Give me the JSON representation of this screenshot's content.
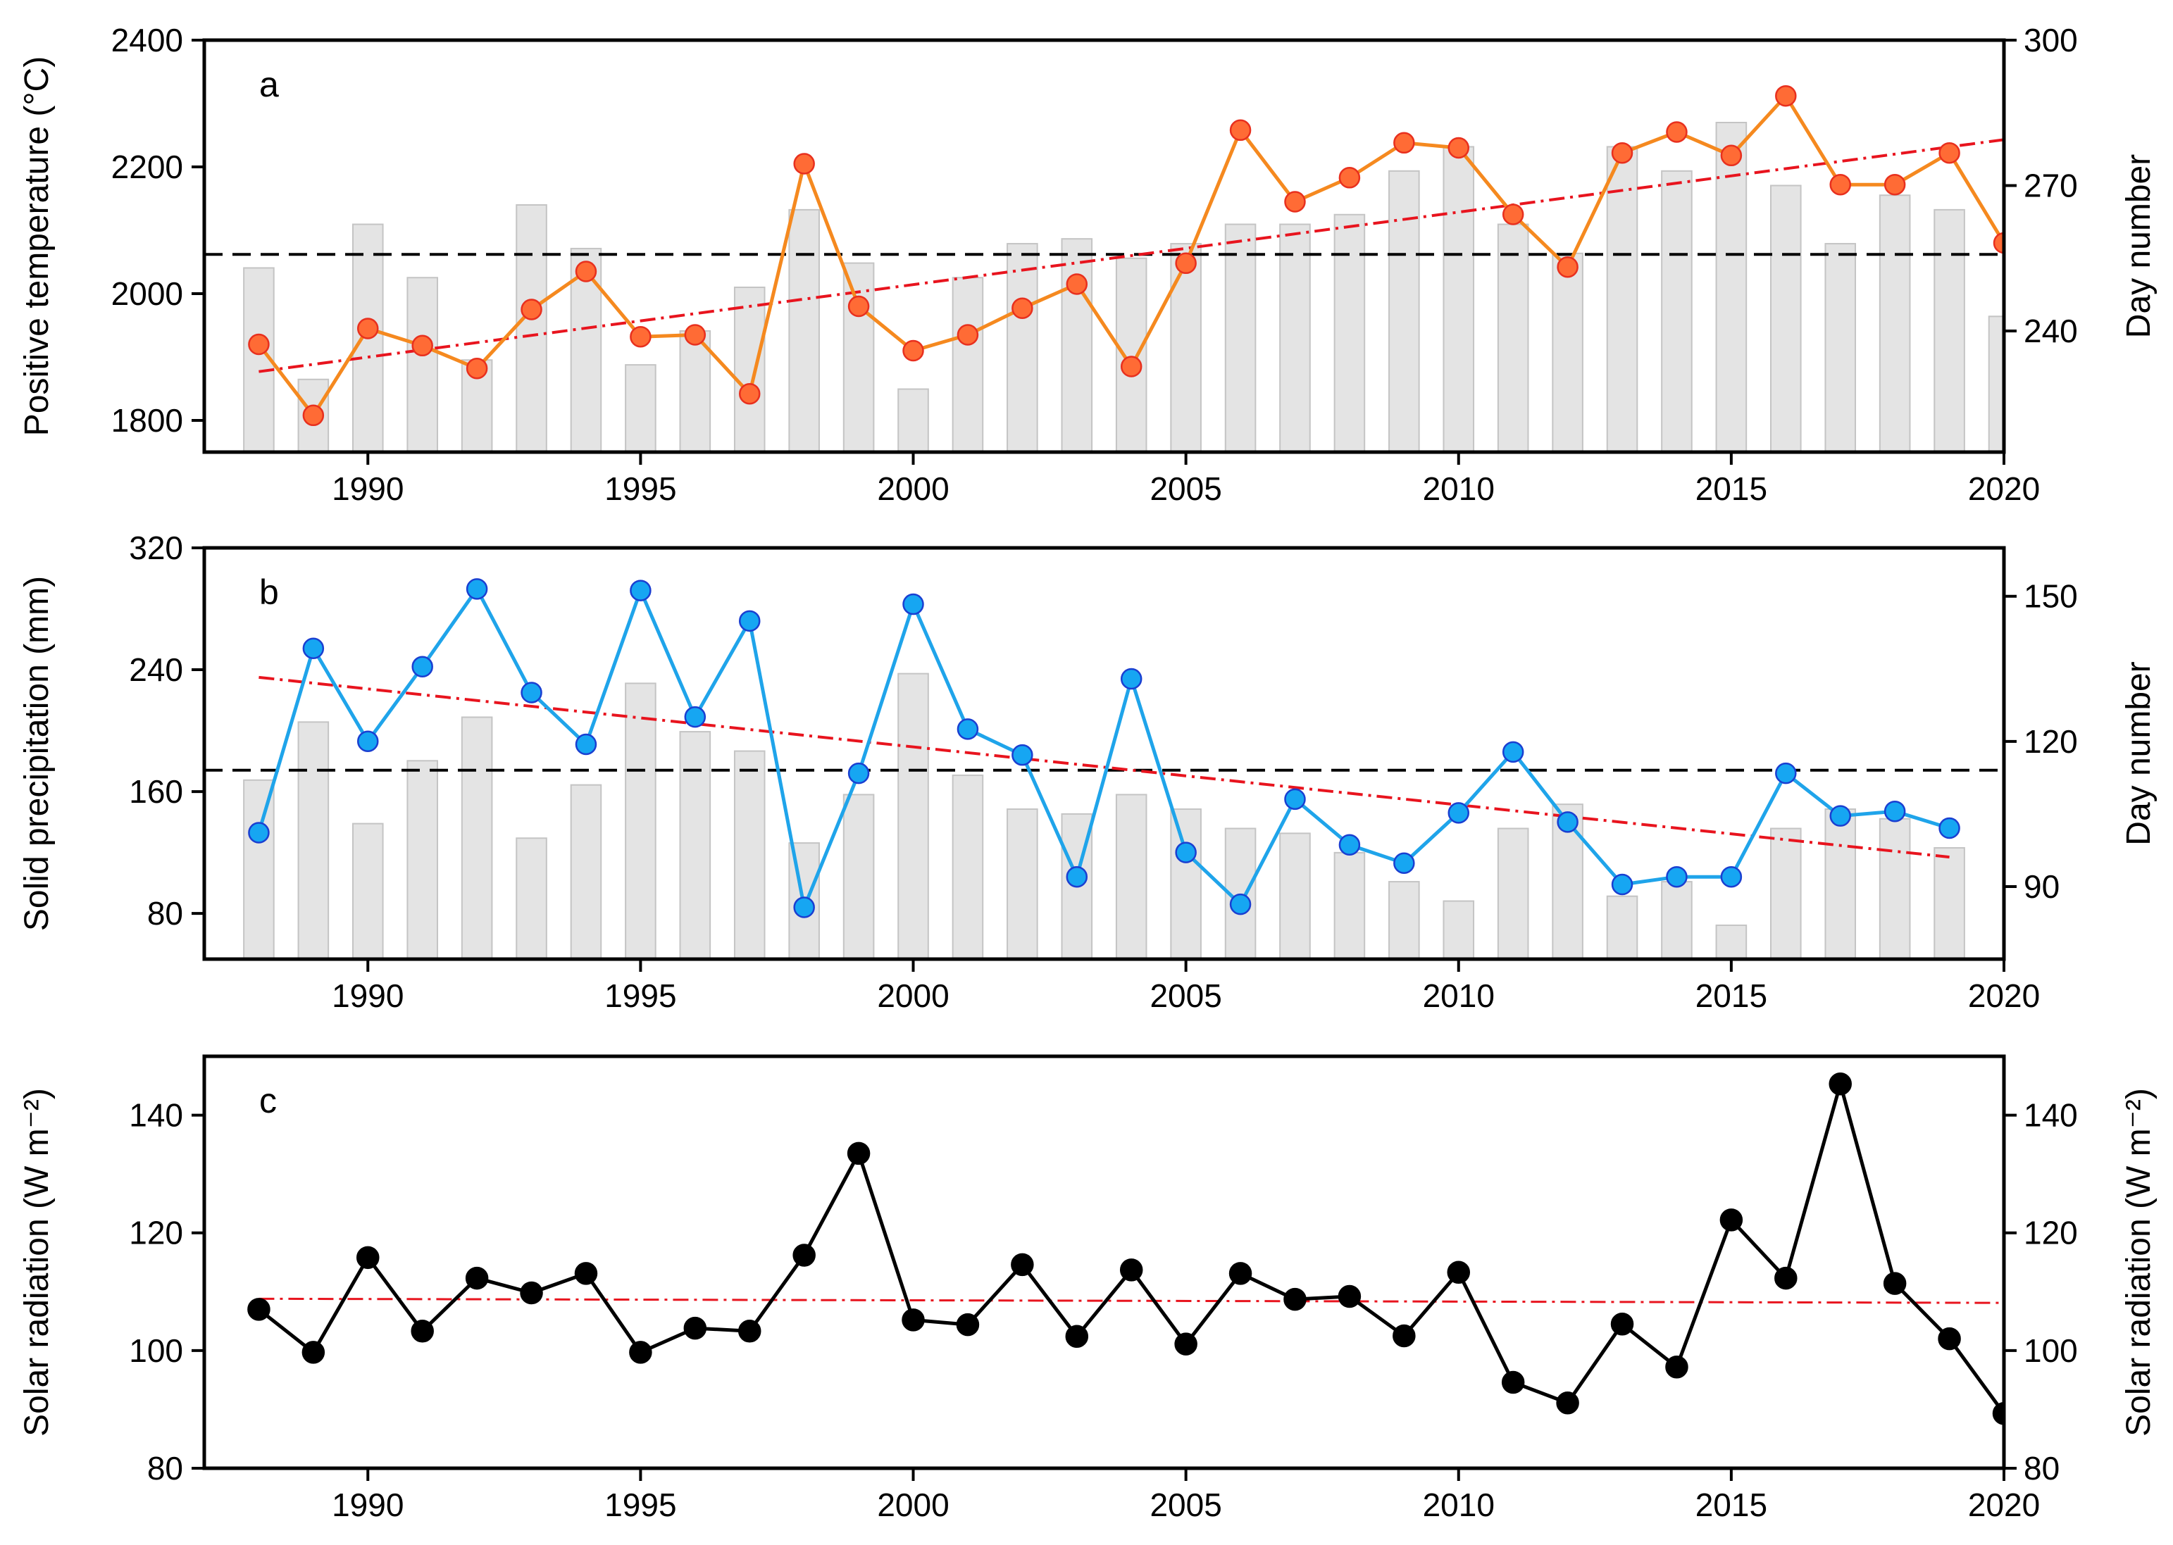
{
  "colors": {
    "temperature": "#f5891f",
    "temperature_marker": "#ff6b35",
    "temperature_marker_edge": "#e8301e",
    "precipitation": "#1fa4ea",
    "precipitation_marker": "#16a6f2",
    "precipitation_marker_edge": "#1a3fd1",
    "radiation": "#000000",
    "trend": "#e8141e",
    "mean": "#000000",
    "bars": "#e4e4e4",
    "bar_edge": "#c4c4c4"
  },
  "chart_data": [
    {
      "panel": "a",
      "type": "line",
      "xlim": [
        1987,
        2020
      ],
      "x_ticks": [
        "1990",
        "1995",
        "2000",
        "2005",
        "2010",
        "2015",
        "2020"
      ],
      "ylabel": "Positive temperature (°C)",
      "ylim": [
        1750,
        2400
      ],
      "y_ticks": [
        "1800",
        "2000",
        "2200",
        "2400"
      ],
      "y2label": "Day number",
      "y2lim": [
        215,
        300
      ],
      "y2_ticks": [
        "240",
        "270",
        "300"
      ],
      "x": [
        1988,
        1989,
        1990,
        1991,
        1992,
        1993,
        1994,
        1995,
        1996,
        1997,
        1998,
        1999,
        2000,
        2001,
        2002,
        2003,
        2004,
        2005,
        2006,
        2007,
        2008,
        2009,
        2010,
        2011,
        2012,
        2013,
        2014,
        2015,
        2016,
        2017,
        2018,
        2019,
        2020
      ],
      "series": [
        {
          "kind": "line",
          "axis": "left",
          "values": [
            1920,
            1808,
            1945,
            1918,
            1882,
            1975,
            2035,
            1932,
            1935,
            1842,
            2205,
            1980,
            1910,
            1935,
            1977,
            2015,
            1885,
            2048,
            2258,
            2145,
            2183,
            2238,
            2230,
            2125,
            2042,
            2222,
            2255,
            2218,
            2312,
            2172,
            2172,
            2222,
            2080
          ]
        },
        {
          "kind": "bar",
          "axis": "right",
          "values": [
            253,
            230,
            262,
            251,
            234,
            266,
            257,
            233,
            240,
            249,
            265,
            254,
            228,
            251,
            258,
            259,
            255,
            258,
            262,
            262,
            264,
            273,
            278,
            262,
            256,
            278,
            273,
            283,
            270,
            258,
            268,
            265,
            243
          ]
        },
        {
          "kind": "trend",
          "axis": "left",
          "x": [
            1988,
            2020
          ],
          "values": [
            1877,
            2243
          ]
        },
        {
          "kind": "mean",
          "axis": "left",
          "x": [
            1987,
            2020
          ],
          "values": [
            2062,
            2062
          ]
        }
      ]
    },
    {
      "panel": "b",
      "type": "line",
      "xlim": [
        1987,
        2020
      ],
      "x_ticks": [
        "1990",
        "1995",
        "2000",
        "2005",
        "2010",
        "2015",
        "2020"
      ],
      "ylabel": "Solid precipitation (mm)",
      "ylim": [
        50,
        320
      ],
      "y_ticks": [
        "80",
        "160",
        "240",
        "320"
      ],
      "y2label": "Day number",
      "y2lim": [
        75,
        160
      ],
      "y2_ticks": [
        "90",
        "120",
        "150"
      ],
      "x": [
        1988,
        1989,
        1990,
        1991,
        1992,
        1993,
        1994,
        1995,
        1996,
        1997,
        1998,
        1999,
        2000,
        2001,
        2002,
        2003,
        2004,
        2005,
        2006,
        2007,
        2008,
        2009,
        2010,
        2011,
        2012,
        2013,
        2014,
        2015,
        2016,
        2017,
        2018,
        2019
      ],
      "series": [
        {
          "kind": "line",
          "axis": "left",
          "values": [
            133,
            254,
            193,
            242,
            293,
            225,
            191,
            292,
            209,
            272,
            84,
            172,
            283,
            201,
            184,
            104,
            234,
            120,
            86,
            155,
            125,
            113,
            146,
            186,
            140,
            99,
            104,
            104,
            172,
            144,
            147,
            136
          ]
        },
        {
          "kind": "bar",
          "axis": "right",
          "values": [
            112,
            124,
            103,
            116,
            125,
            100,
            111,
            132,
            122,
            118,
            99,
            109,
            134,
            113,
            106,
            105,
            109,
            106,
            102,
            101,
            97,
            91,
            87,
            102,
            107,
            88,
            91,
            82,
            102,
            106,
            104,
            98
          ]
        },
        {
          "kind": "trend",
          "axis": "left",
          "x": [
            1988,
            2019
          ],
          "values": [
            235,
            117
          ]
        },
        {
          "kind": "mean",
          "axis": "left",
          "x": [
            1987,
            2020
          ],
          "values": [
            174,
            174
          ]
        }
      ]
    },
    {
      "panel": "c",
      "type": "line",
      "xlim": [
        1987,
        2020
      ],
      "x_ticks": [
        "1990",
        "1995",
        "2000",
        "2005",
        "2010",
        "2015",
        "2020"
      ],
      "ylabel": "Solar radiation (W m⁻²)",
      "ylim": [
        80,
        150
      ],
      "y_ticks": [
        "80",
        "100",
        "120",
        "140"
      ],
      "y2label": "Solar radiation (W m⁻²)",
      "y2lim": [
        80,
        150
      ],
      "y2_ticks": [
        "80",
        "100",
        "120",
        "140"
      ],
      "x": [
        1988,
        1989,
        1990,
        1991,
        1992,
        1993,
        1994,
        1995,
        1996,
        1997,
        1998,
        1999,
        2000,
        2001,
        2002,
        2003,
        2004,
        2005,
        2006,
        2007,
        2008,
        2009,
        2010,
        2011,
        2012,
        2013,
        2014,
        2015,
        2016,
        2017,
        2018,
        2019,
        2020
      ],
      "series": [
        {
          "kind": "line",
          "axis": "left",
          "values": [
            107,
            99.7,
            115.8,
            103.3,
            112.3,
            109.8,
            113.1,
            99.7,
            103.8,
            103.3,
            116.2,
            133.5,
            105.2,
            104.4,
            114.6,
            102.4,
            113.7,
            101.1,
            113.1,
            108.7,
            109.2,
            102.5,
            113.3,
            94.6,
            91.1,
            104.5,
            97.2,
            122.2,
            112.3,
            145.3,
            111.4,
            102.0,
            89.3
          ]
        },
        {
          "kind": "trend",
          "axis": "left",
          "x": [
            1988,
            2020
          ],
          "values": [
            108.8,
            108.1
          ]
        }
      ]
    }
  ]
}
